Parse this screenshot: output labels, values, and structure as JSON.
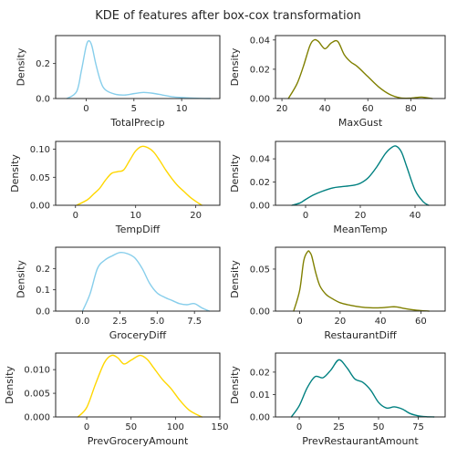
{
  "title": "KDE of features after box-cox transformation",
  "chart_data": [
    {
      "type": "line",
      "xlabel": "TotalPrecip",
      "ylabel": "Density",
      "xlim": [
        -3.2,
        14
      ],
      "ylim": [
        0,
        0.36
      ],
      "xticks": [
        0,
        5,
        10
      ],
      "yticks": [
        0.0,
        0.2
      ],
      "ytick_labels": [
        "0.0",
        "0.2"
      ],
      "color": "#87CEEB",
      "grid": false,
      "x": [
        -2,
        -1,
        -0.5,
        0,
        0.3,
        0.6,
        1,
        1.5,
        2,
        3,
        4,
        5,
        6,
        7,
        8,
        9,
        10,
        11,
        12,
        13
      ],
      "y": [
        0.0,
        0.04,
        0.16,
        0.3,
        0.33,
        0.3,
        0.2,
        0.1,
        0.05,
        0.025,
        0.02,
        0.028,
        0.035,
        0.03,
        0.02,
        0.01,
        0.006,
        0.003,
        0.001,
        0.0
      ]
    },
    {
      "type": "line",
      "xlabel": "MaxGust",
      "ylabel": "Density",
      "xlim": [
        17,
        96
      ],
      "ylim": [
        0,
        0.043
      ],
      "xticks": [
        20,
        40,
        60,
        80
      ],
      "yticks": [
        0.0,
        0.02,
        0.04
      ],
      "ytick_labels": [
        "0.00",
        "0.02",
        "0.04"
      ],
      "color": "#808000",
      "grid": false,
      "x": [
        23,
        27,
        30,
        33,
        35,
        37,
        40,
        43,
        46,
        49,
        52,
        55,
        60,
        65,
        70,
        75,
        80,
        85,
        90
      ],
      "y": [
        0.0,
        0.01,
        0.022,
        0.036,
        0.04,
        0.039,
        0.034,
        0.038,
        0.039,
        0.03,
        0.025,
        0.022,
        0.015,
        0.008,
        0.003,
        0.0005,
        0.0003,
        0.001,
        0.0
      ]
    },
    {
      "type": "line",
      "xlabel": "TempDiff",
      "ylabel": "Density",
      "xlim": [
        -3.3,
        24
      ],
      "ylim": [
        0,
        0.114
      ],
      "xticks": [
        0,
        10,
        20
      ],
      "yticks": [
        0.0,
        0.05,
        0.1
      ],
      "ytick_labels": [
        "0.00",
        "0.05",
        "0.10"
      ],
      "color": "#FFD700",
      "grid": false,
      "x": [
        0.2,
        2,
        3,
        4,
        5,
        6,
        7,
        8,
        9,
        10,
        11,
        12,
        13,
        14,
        15,
        16,
        17,
        18,
        19,
        20,
        21
      ],
      "y": [
        0.0,
        0.01,
        0.02,
        0.03,
        0.045,
        0.057,
        0.06,
        0.063,
        0.08,
        0.097,
        0.105,
        0.103,
        0.095,
        0.08,
        0.063,
        0.048,
        0.035,
        0.025,
        0.015,
        0.007,
        0.0
      ]
    },
    {
      "type": "line",
      "xlabel": "MeanTemp",
      "ylabel": "Density",
      "xlim": [
        -11,
        51
      ],
      "ylim": [
        0,
        0.055
      ],
      "xticks": [
        0,
        20,
        40
      ],
      "yticks": [
        0.0,
        0.02,
        0.04
      ],
      "ytick_labels": [
        "0.00",
        "0.02",
        "0.04"
      ],
      "color": "#008080",
      "grid": false,
      "x": [
        -5,
        -2,
        0,
        3,
        6,
        10,
        13,
        17,
        20,
        23,
        26,
        29,
        31,
        33,
        35,
        37,
        40,
        43,
        45
      ],
      "y": [
        0.0,
        0.002,
        0.005,
        0.009,
        0.012,
        0.015,
        0.016,
        0.017,
        0.019,
        0.024,
        0.033,
        0.044,
        0.049,
        0.051,
        0.046,
        0.033,
        0.013,
        0.003,
        0.0
      ]
    },
    {
      "type": "line",
      "xlabel": "GroceryDiff",
      "ylabel": "Density",
      "xlim": [
        -1.8,
        9.2
      ],
      "ylim": [
        0,
        0.3
      ],
      "xticks": [
        0,
        2.5,
        5,
        7.5
      ],
      "xtick_labels": [
        "0.0",
        "2.5",
        "5.0",
        "7.5"
      ],
      "yticks": [
        0.0,
        0.1,
        0.2
      ],
      "ytick_labels": [
        "0.0",
        "0.1",
        "0.2"
      ],
      "color": "#87CEEB",
      "grid": false,
      "x": [
        0,
        0.5,
        1,
        1.5,
        2,
        2.5,
        3,
        3.5,
        4,
        4.5,
        5,
        5.5,
        6,
        6.5,
        7,
        7.5,
        8,
        8.5
      ],
      "y": [
        0.0,
        0.08,
        0.2,
        0.24,
        0.26,
        0.275,
        0.27,
        0.25,
        0.2,
        0.13,
        0.085,
        0.065,
        0.05,
        0.035,
        0.03,
        0.035,
        0.015,
        0.0
      ]
    },
    {
      "type": "line",
      "xlabel": "RestaurantDiff",
      "ylabel": "Density",
      "xlim": [
        -12,
        72
      ],
      "ylim": [
        0,
        0.076
      ],
      "xticks": [
        0,
        20,
        40,
        60
      ],
      "yticks": [
        0.0,
        0.05
      ],
      "ytick_labels": [
        "0.00",
        "0.05"
      ],
      "color": "#808000",
      "grid": false,
      "x": [
        -3,
        0,
        2,
        4,
        5,
        6,
        8,
        10,
        13,
        16,
        20,
        25,
        30,
        35,
        40,
        45,
        48,
        52,
        58,
        64
      ],
      "y": [
        0.0,
        0.025,
        0.06,
        0.071,
        0.07,
        0.065,
        0.045,
        0.03,
        0.02,
        0.015,
        0.01,
        0.007,
        0.005,
        0.004,
        0.004,
        0.005,
        0.005,
        0.003,
        0.001,
        0.0
      ]
    },
    {
      "type": "line",
      "xlabel": "PrevGroceryAmount",
      "ylabel": "Density",
      "xlim": [
        -35,
        150
      ],
      "ylim": [
        0,
        0.0135
      ],
      "xticks": [
        0,
        50,
        100,
        150
      ],
      "yticks": [
        0.0,
        0.005,
        0.01
      ],
      "ytick_labels": [
        "0.000",
        "0.005",
        "0.010"
      ],
      "color": "#FFD700",
      "grid": false,
      "x": [
        -10,
        0,
        10,
        20,
        28,
        35,
        42,
        50,
        60,
        68,
        75,
        85,
        95,
        105,
        115,
        125,
        130
      ],
      "y": [
        0.0,
        0.002,
        0.007,
        0.0115,
        0.013,
        0.0125,
        0.0112,
        0.012,
        0.013,
        0.0122,
        0.0105,
        0.008,
        0.006,
        0.0035,
        0.0015,
        0.0004,
        0.0
      ]
    },
    {
      "type": "line",
      "xlabel": "PrevRestaurantAmount",
      "ylabel": "Density",
      "xlim": [
        -15,
        92
      ],
      "ylim": [
        0,
        0.0285
      ],
      "xticks": [
        0,
        25,
        50,
        75
      ],
      "yticks": [
        0.0,
        0.01,
        0.02
      ],
      "ytick_labels": [
        "0.00",
        "0.01",
        "0.02"
      ],
      "color": "#008080",
      "grid": false,
      "x": [
        -5,
        0,
        5,
        10,
        15,
        20,
        25,
        30,
        35,
        40,
        45,
        50,
        55,
        60,
        65,
        70,
        75,
        80,
        85
      ],
      "y": [
        0.0,
        0.005,
        0.013,
        0.018,
        0.0175,
        0.021,
        0.0255,
        0.022,
        0.017,
        0.0155,
        0.012,
        0.0065,
        0.004,
        0.0045,
        0.0035,
        0.0015,
        0.0005,
        0.0001,
        0.0
      ]
    }
  ]
}
